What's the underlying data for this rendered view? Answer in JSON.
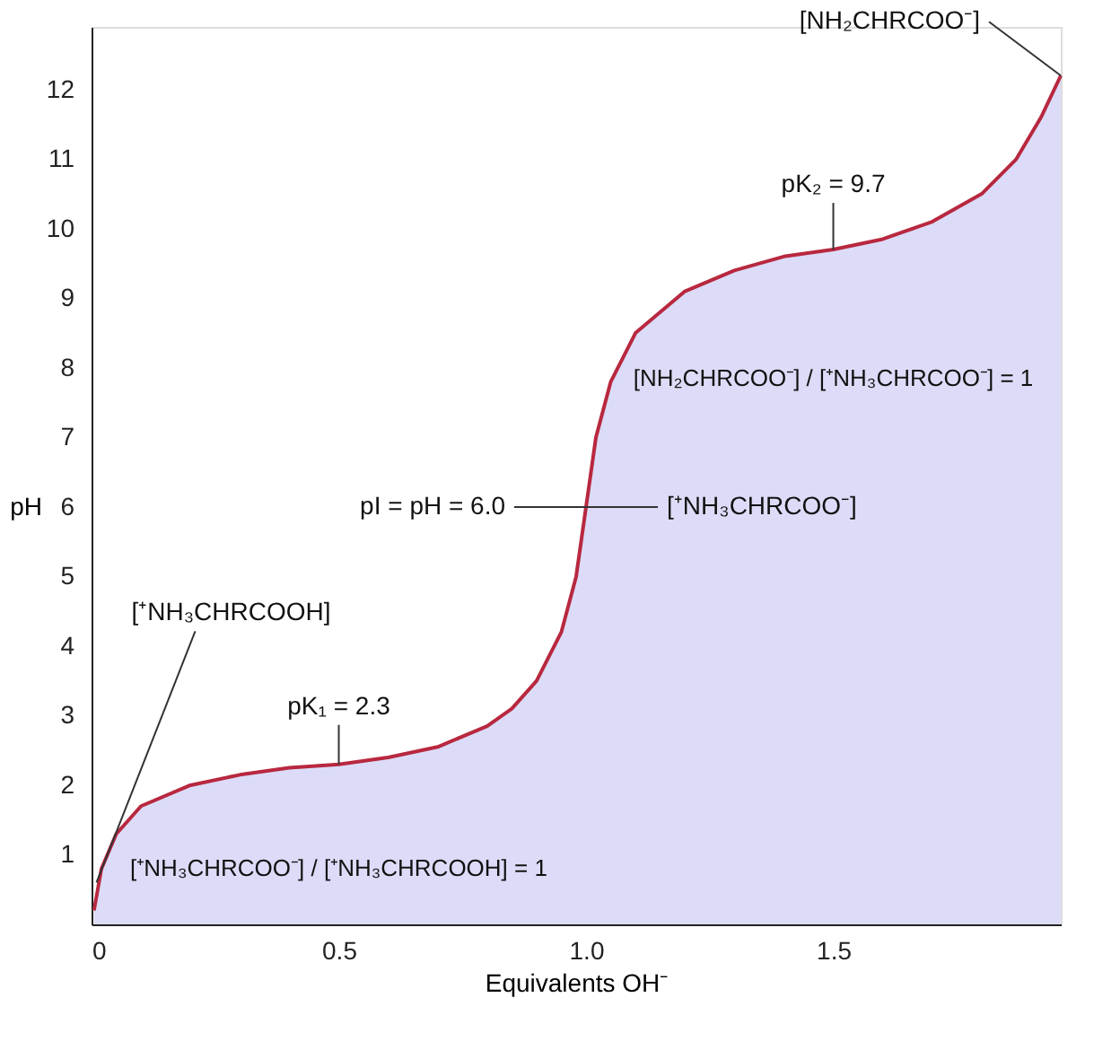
{
  "chart_data": {
    "type": "area",
    "xlabel": "Equivalents OH⁻",
    "ylabel": "pH",
    "xlim": [
      0,
      1.96
    ],
    "ylim": [
      0,
      12.9
    ],
    "xticks": [
      0,
      0.5,
      {
        "value": 1,
        "label": "1.0"
      },
      1.5
    ],
    "yticks": [
      1,
      2,
      3,
      4,
      5,
      6,
      7,
      8,
      9,
      10,
      11,
      12
    ],
    "grid": false,
    "line_style": "solid",
    "series": [
      {
        "color": "#b8283f",
        "x": [
          0.005,
          0.02,
          0.05,
          0.1,
          0.2,
          0.3,
          0.4,
          0.5,
          0.6,
          0.7,
          0.8,
          0.85,
          0.9,
          0.95,
          0.98,
          1.0,
          1.02,
          1.05,
          1.1,
          1.2,
          1.3,
          1.4,
          1.5,
          1.6,
          1.7,
          1.8,
          1.87,
          1.92,
          1.96
        ],
        "values": [
          0.2,
          0.8,
          1.3,
          1.7,
          2.0,
          2.15,
          2.25,
          2.3,
          2.4,
          2.55,
          2.85,
          3.1,
          3.5,
          4.2,
          5.0,
          6.0,
          7.0,
          7.8,
          8.5,
          9.1,
          9.4,
          9.6,
          9.7,
          9.85,
          10.1,
          10.5,
          11.0,
          11.6,
          12.2
        ]
      }
    ],
    "annotations": [
      {
        "text": "[⁺NH₃CHRCOOH]",
        "x": 0.01,
        "y": 0.6
      },
      {
        "text": "pK₁ = 2.3",
        "x": 0.5,
        "y": 2.3
      },
      "[⁺NH₃CHRCOO⁻] / [⁺NH₃CHRCOOH] = 1",
      {
        "text": "pI = pH = 6.0",
        "x": 1.0,
        "y": 6.0
      },
      {
        "text": "[⁺NH₃CHRCOO⁻]",
        "x": 1.0,
        "y": 6.0
      },
      {
        "text": "pK₂ = 9.7",
        "x": 1.5,
        "y": 9.7
      },
      "[NH₂CHRCOO⁻] / [⁺NH₃CHRCOO⁻] = 1",
      {
        "text": "[NH₂CHRCOO⁻]",
        "x": 1.96,
        "y": 12.2
      }
    ]
  }
}
